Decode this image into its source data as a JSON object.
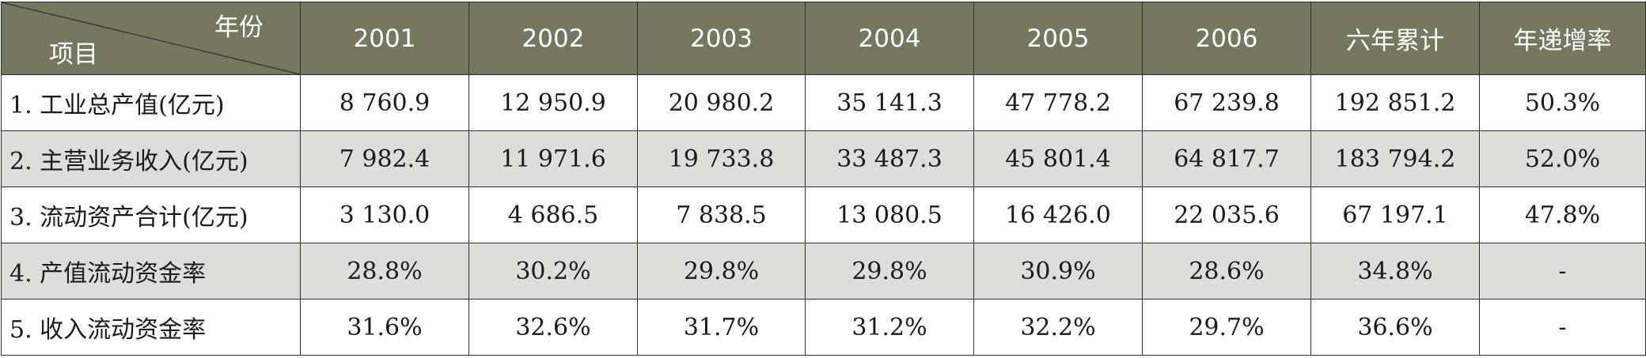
{
  "table": {
    "corner_col_header": "年份",
    "corner_row_header": "项目",
    "columns": [
      "2001",
      "2002",
      "2003",
      "2004",
      "2005",
      "2006",
      "六年累计",
      "年递增率"
    ],
    "rows": [
      {
        "label": "1. 工业总产值(亿元)",
        "cells": [
          "8 760.9",
          "12 950.9",
          "20 980.2",
          "35 141.3",
          "47 778.2",
          "67 239.8",
          "192 851.2",
          "50.3%"
        ]
      },
      {
        "label": "2. 主营业务收入(亿元)",
        "cells": [
          "7 982.4",
          "11 971.6",
          "19 733.8",
          "33 487.3",
          "45 801.4",
          "64 817.7",
          "183 794.2",
          "52.0%"
        ]
      },
      {
        "label": "3. 流动资产合计(亿元)",
        "cells": [
          "3 130.0",
          "4 686.5",
          "7 838.5",
          "13 080.5",
          "16 426.0",
          "22 035.6",
          "67 197.1",
          "47.8%"
        ]
      },
      {
        "label": "4. 产值流动资金率",
        "cells": [
          "28.8%",
          "30.2%",
          "29.8%",
          "29.8%",
          "30.9%",
          "28.6%",
          "34.8%",
          "-"
        ]
      },
      {
        "label": "5. 收入流动资金率",
        "cells": [
          "31.6%",
          "32.6%",
          "31.7%",
          "31.2%",
          "32.2%",
          "29.7%",
          "36.6%",
          "-"
        ]
      }
    ]
  },
  "colors": {
    "header_bg": "#77765f",
    "header_text": "#ffffff",
    "shaded_row_bg": "#deddda",
    "border": "#2e2e26"
  }
}
